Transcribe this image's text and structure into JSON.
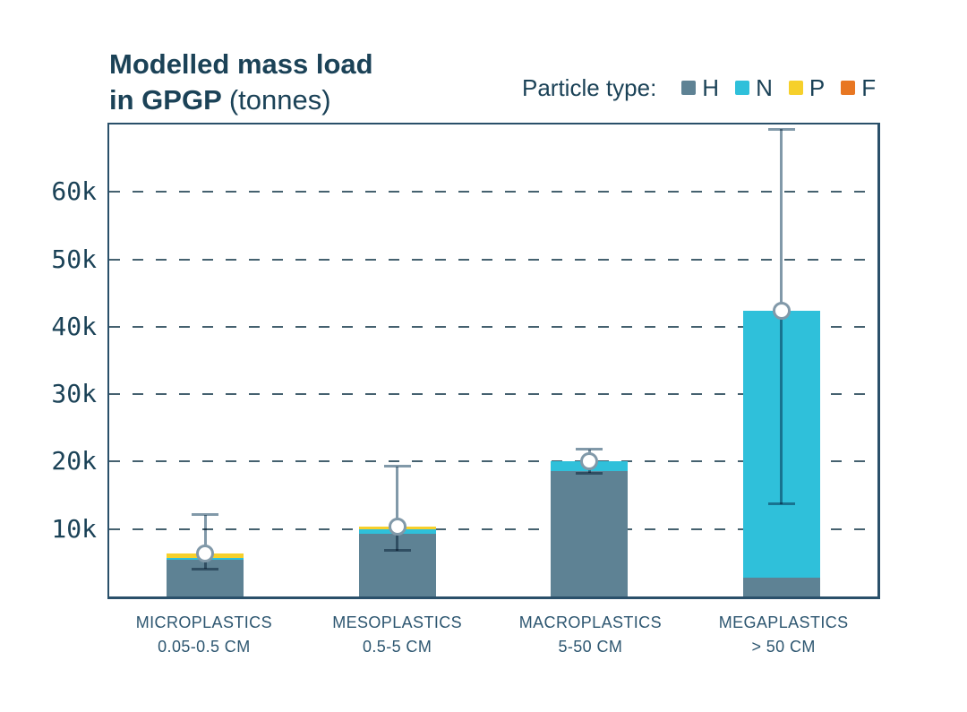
{
  "chart_data": {
    "type": "bar",
    "stacked": true,
    "title": {
      "line1": "Modelled mass load",
      "line2_bold": "in GPGP",
      "line2_note": "(tonnes)"
    },
    "legend": {
      "label": "Particle type:",
      "position": "top-right"
    },
    "series": [
      {
        "key": "H",
        "label": "H",
        "color": "#5e8294"
      },
      {
        "key": "N",
        "label": "N",
        "color": "#2fc0da"
      },
      {
        "key": "P",
        "label": "P",
        "color": "#f6d02b"
      },
      {
        "key": "F",
        "label": "F",
        "color": "#e87722"
      }
    ],
    "y_axis": {
      "unit": "tonnes",
      "max_k": 70,
      "gridlines": "dashed",
      "ticks": [
        {
          "value_k": 10,
          "label": "10k"
        },
        {
          "value_k": 20,
          "label": "20k"
        },
        {
          "value_k": 30,
          "label": "30k"
        },
        {
          "value_k": 40,
          "label": "40k"
        },
        {
          "value_k": 50,
          "label": "50k"
        },
        {
          "value_k": 60,
          "label": "60k"
        }
      ]
    },
    "categories": [
      {
        "label": "MICROPLASTICS",
        "sublabel": "0.05-0.5 CM",
        "values_k": {
          "H": 5.5,
          "N": 0.2,
          "P": 0.7,
          "F": 0
        },
        "total_k": 6.4,
        "err_low_k": 4.1,
        "err_high_k": 12.1
      },
      {
        "label": "MESOPLASTICS",
        "sublabel": "0.5-5 CM",
        "values_k": {
          "H": 9.3,
          "N": 0.6,
          "P": 0.4,
          "F": 0
        },
        "total_k": 10.3,
        "err_low_k": 6.8,
        "err_high_k": 19.3
      },
      {
        "label": "MACROPLASTICS",
        "sublabel": "5-50 CM",
        "values_k": {
          "H": 18.6,
          "N": 1.5,
          "P": 0,
          "F": 0
        },
        "total_k": 20.1,
        "err_low_k": 18.3,
        "err_high_k": 21.8
      },
      {
        "label": "MEGAPLASTICS",
        "sublabel": "> 50 CM",
        "values_k": {
          "H": 2.8,
          "N": 39.6,
          "P": 0,
          "F": 0
        },
        "total_k": 42.4,
        "err_low_k": 13.7,
        "err_high_k": 69.3
      }
    ],
    "colors": {
      "text_navy": "#1b4257",
      "axis_label": "#2d5670",
      "grid": "#45616f",
      "border": "#2a506a",
      "error_bar": "#8199a9",
      "marker_fill": "#ffffff",
      "background": "#ffffff"
    }
  }
}
